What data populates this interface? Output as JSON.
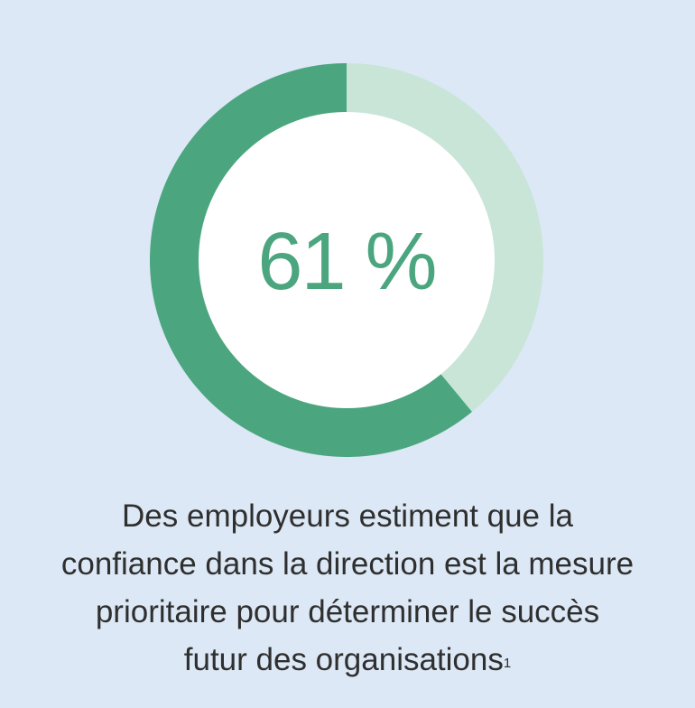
{
  "chart_data": {
    "type": "pie",
    "variant": "donut",
    "center_label": "61 %",
    "values": [
      61,
      39
    ],
    "colors": [
      "#4ba67f",
      "#c8e5d8"
    ],
    "inner_color": "#ffffff"
  },
  "caption": {
    "lines": [
      "Des employeurs estiment que la",
      "confiance dans la direction est la mesure",
      "prioritaire pour déterminer le succès",
      "futur des organisations"
    ],
    "footnote_marker": "1"
  },
  "colors": {
    "background": "#dce8f5",
    "text": "#2f2f2f",
    "accent": "#4ba67f"
  }
}
